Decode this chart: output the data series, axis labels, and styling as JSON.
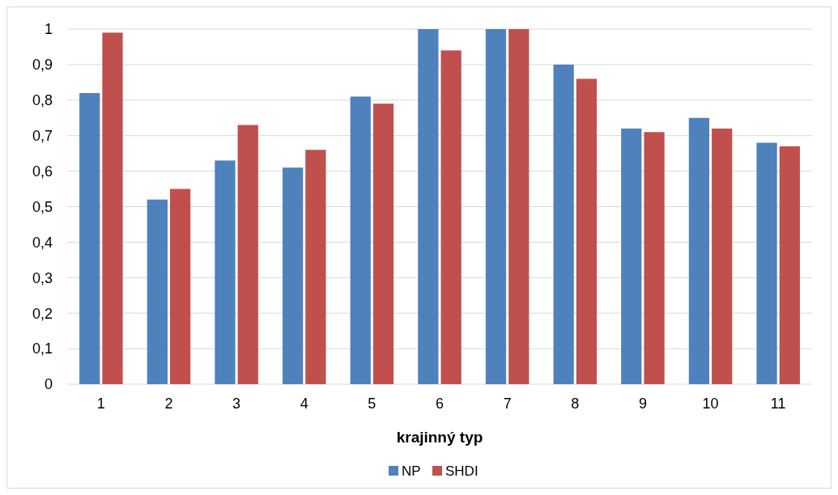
{
  "chart_data": {
    "type": "bar",
    "xlabel": "krajinný typ",
    "categories": [
      "1",
      "2",
      "3",
      "4",
      "5",
      "6",
      "7",
      "8",
      "9",
      "10",
      "11"
    ],
    "series": [
      {
        "name": "NP",
        "color": "#4f81bd",
        "values": [
          0.82,
          0.52,
          0.63,
          0.61,
          0.81,
          1,
          1,
          0.9,
          0.72,
          0.75,
          0.68
        ]
      },
      {
        "name": "SHDI",
        "color": "#c0504d",
        "values": [
          0.99,
          0.55,
          0.73,
          0.66,
          0.79,
          0.94,
          1,
          0.86,
          0.71,
          0.72,
          0.67
        ]
      }
    ],
    "ylim": [
      0,
      1
    ],
    "yticks": [
      {
        "value": 0,
        "label": "0"
      },
      {
        "value": 0.1,
        "label": "0,1"
      },
      {
        "value": 0.2,
        "label": "0,2"
      },
      {
        "value": 0.3,
        "label": "0,3"
      },
      {
        "value": 0.4,
        "label": "0,4"
      },
      {
        "value": 0.5,
        "label": "0,5"
      },
      {
        "value": 0.6,
        "label": "0,6"
      },
      {
        "value": 0.7,
        "label": "0,7"
      },
      {
        "value": 0.8,
        "label": "0,8"
      },
      {
        "value": 0.9,
        "label": "0,9"
      },
      {
        "value": 1,
        "label": "1"
      }
    ],
    "grid": "y",
    "legend": "bottom"
  }
}
